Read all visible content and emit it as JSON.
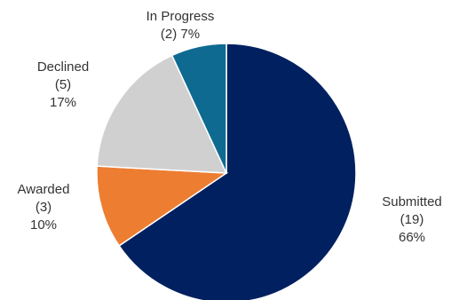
{
  "chart_data": {
    "type": "pie",
    "title": "",
    "legend": "none",
    "slices": [
      {
        "name": "Submitted",
        "count": "(19)",
        "percent": "66%",
        "value": 19,
        "color": "#002060"
      },
      {
        "name": "Awarded",
        "count": "(3)",
        "percent": "10%",
        "value": 3,
        "color": "#ED7D31"
      },
      {
        "name": "Declined",
        "count": "(5)",
        "percent": "17%",
        "value": 5,
        "color": "#D0D0D0"
      },
      {
        "name": "In Progress",
        "count": "(2)",
        "percent": "7%",
        "value": 2,
        "color": "#0E6A91"
      }
    ]
  }
}
